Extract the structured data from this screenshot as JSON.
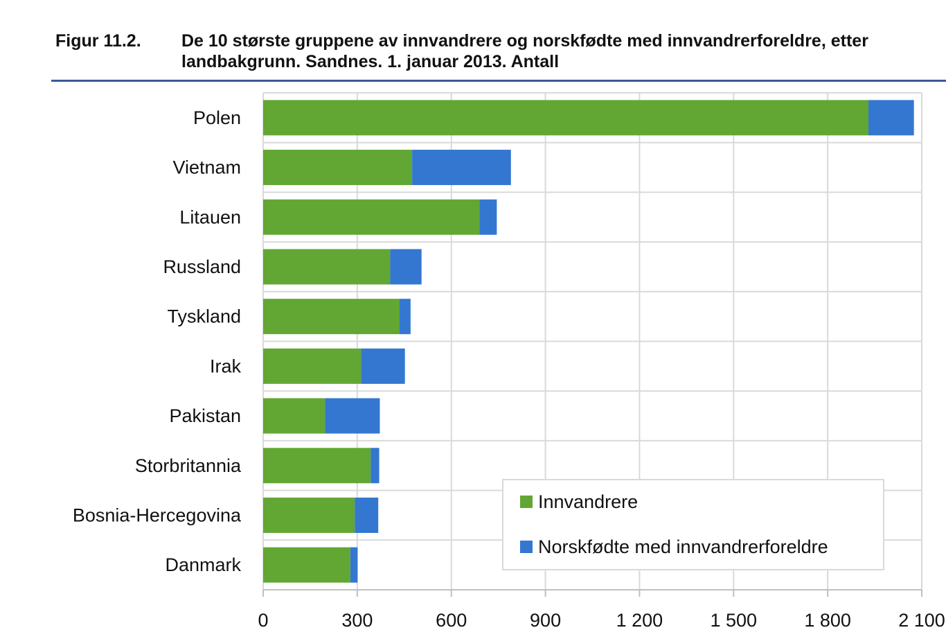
{
  "figure": {
    "number": "Figur 11.2.",
    "title": "De 10 største gruppene av innvandrere og norskfødte med innvandrerforeldre, etter landbakgrunn. Sandnes. 1. januar 2013. Antall"
  },
  "chart_data": {
    "type": "bar",
    "orientation": "horizontal",
    "stacked": true,
    "categories": [
      "Polen",
      "Vietnam",
      "Litauen",
      "Russland",
      "Tyskland",
      "Irak",
      "Pakistan",
      "Storbritannia",
      "Bosnia-Hercegovina",
      "Danmark"
    ],
    "series": [
      {
        "name": "Innvandrere",
        "color": "#62a733",
        "values": [
          1930,
          475,
          690,
          405,
          435,
          312,
          197,
          343,
          292,
          278
        ]
      },
      {
        "name": "Norskfødte med innvandrerforeldre",
        "color": "#3477d0",
        "values": [
          145,
          315,
          55,
          100,
          35,
          140,
          175,
          27,
          75,
          23
        ]
      }
    ],
    "xlim": [
      0,
      2100
    ],
    "xticks": [
      0,
      300,
      600,
      900,
      1200,
      1500,
      1800,
      2100
    ],
    "xtick_labels": [
      "0",
      "300",
      "600",
      "900",
      "1 200",
      "1 500",
      "1 800",
      "2 100"
    ],
    "grid": true,
    "legend_position": "bottom-right"
  }
}
